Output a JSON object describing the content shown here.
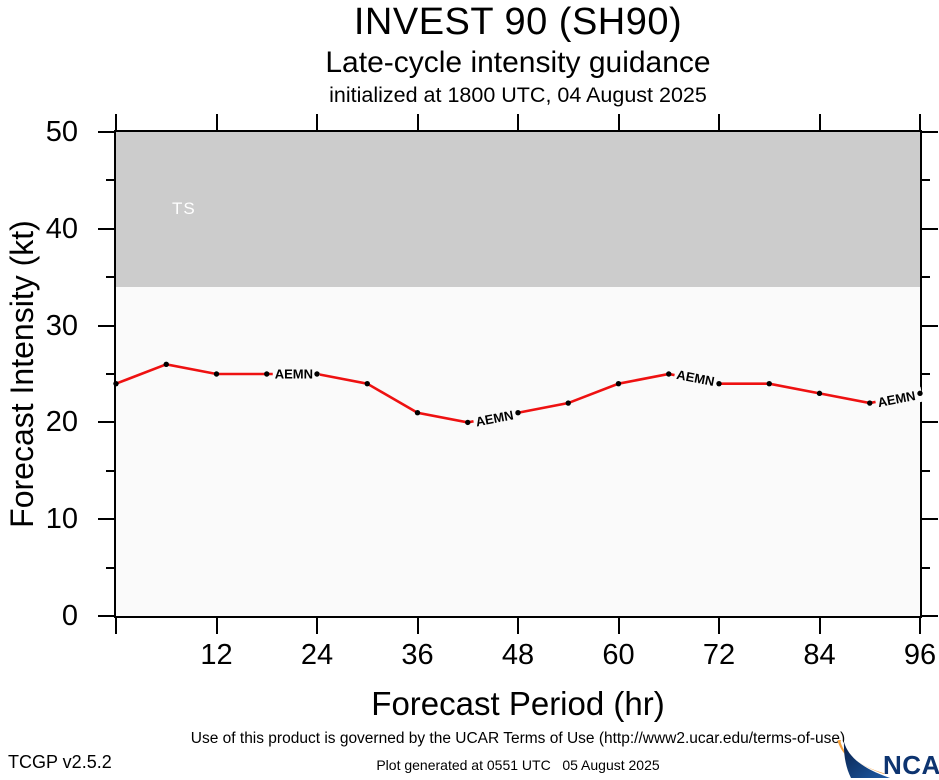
{
  "page": {
    "title": "INVEST 90 (SH90)",
    "subtitle": "Late-cycle intensity guidance",
    "init_line": "initialized at 1800 UTC, 04 August 2025"
  },
  "footer": {
    "terms": "Use of this product is governed by the UCAR Terms of Use (http://www2.ucar.edu/terms-of-use)",
    "generated": "Plot generated at 0551 UTC   05 August 2025",
    "version": "TCGP v2.5.2",
    "logo_text": "NCAR"
  },
  "colors": {
    "line": "#ee1111",
    "marker": "#000000",
    "ts_band": "#cccccc",
    "plot_bg": "#fafafa",
    "band_label": "#ffffff",
    "axis": "#000000",
    "logo_navy": "#0d3470",
    "logo_orange": "#f5a03c"
  },
  "chart_data": {
    "type": "line",
    "title": "INVEST 90 (SH90)",
    "subtitle": "Late-cycle intensity guidance",
    "initialized": "initialized at 1800 UTC, 04 August 2025",
    "xlabel": "Forecast Period (hr)",
    "ylabel": "Forecast Intensity (kt)",
    "xlim": [
      0,
      96
    ],
    "ylim": [
      0,
      50
    ],
    "grid": false,
    "legend": "inline-labels",
    "x_major_ticks": [
      0,
      12,
      24,
      36,
      48,
      60,
      72,
      84,
      96
    ],
    "x_tick_labels": [
      12,
      24,
      36,
      48,
      60,
      72,
      84,
      96
    ],
    "y_major_ticks": [
      0,
      10,
      20,
      30,
      40,
      50
    ],
    "y_minor_ticks": [
      5,
      15,
      25,
      35,
      45
    ],
    "bands": [
      {
        "label": "TS",
        "from": 34,
        "to": 50
      }
    ],
    "series": [
      {
        "name": "AEMN",
        "x": [
          0,
          6,
          12,
          18,
          24,
          30,
          36,
          42,
          48,
          54,
          60,
          66,
          72,
          78,
          84,
          90,
          96
        ],
        "values": [
          24,
          26,
          25,
          25,
          25,
          24,
          21,
          20,
          21,
          22,
          24,
          25,
          24,
          24,
          23,
          22,
          23
        ],
        "label_positions_x": [
          18,
          42,
          66,
          90
        ]
      }
    ]
  }
}
